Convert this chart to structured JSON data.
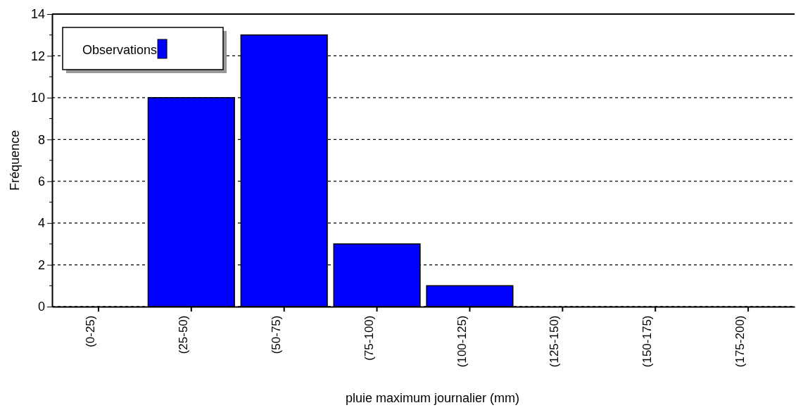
{
  "chart_data": {
    "type": "bar",
    "xlabel": "pluie maximum journalier (mm)",
    "ylabel": "Fréquence",
    "categories": [
      "(0-25)",
      "(25-50)",
      "(50-75)",
      "(75-100)",
      "(100-125)",
      "(125-150)",
      "(150-175)",
      "(175-200)"
    ],
    "series": [
      {
        "name": "Observations",
        "color": "#0000ff",
        "values": [
          0,
          10,
          13,
          3,
          1,
          0,
          0,
          0
        ]
      }
    ],
    "ylim": [
      0,
      14
    ],
    "yticks": [
      0,
      2,
      4,
      6,
      8,
      10,
      12,
      14
    ],
    "grid": "y",
    "legend": "top left"
  }
}
